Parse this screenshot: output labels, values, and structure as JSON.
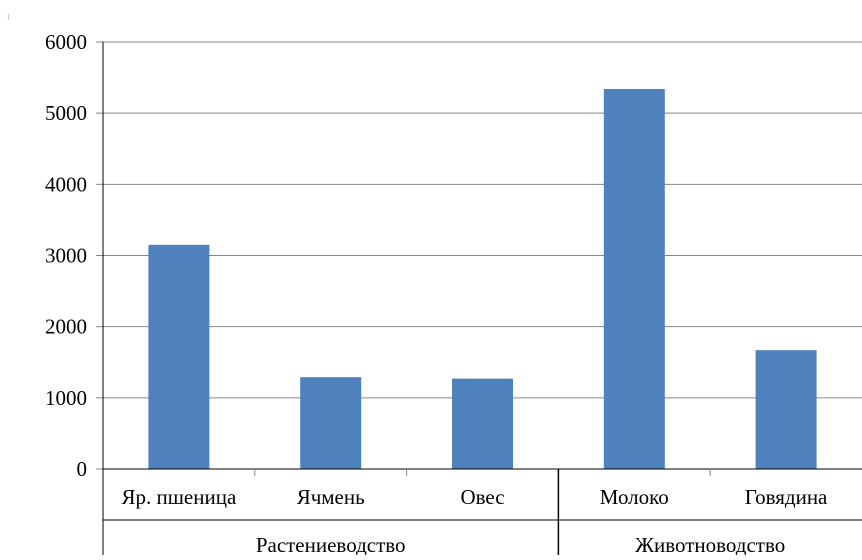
{
  "page": {
    "corner_mark": "1"
  },
  "chart_data": {
    "type": "bar",
    "categories": [
      "Яр. пшеница",
      "Ячмень",
      "Овес",
      "Молоко",
      "Говядина"
    ],
    "groups": [
      {
        "label": "Растениеводство",
        "categories": [
          "Яр. пшеница",
          "Ячмень",
          "Овес"
        ]
      },
      {
        "label": "Животноводство",
        "categories": [
          "Молоко",
          "Говядина"
        ]
      }
    ],
    "series": [
      {
        "values": [
          3150,
          1290,
          1270,
          5340,
          1670
        ]
      }
    ],
    "title": "",
    "xlabel": "",
    "ylabel": "",
    "ylim": [
      0,
      6000
    ],
    "yticks": [
      "0",
      "1000",
      "2000",
      "3000",
      "4000",
      "5000",
      "6000"
    ],
    "grid": true,
    "bar_color": "#4F81BD",
    "gridline_color": "#868686",
    "axis_color": "#000000"
  }
}
